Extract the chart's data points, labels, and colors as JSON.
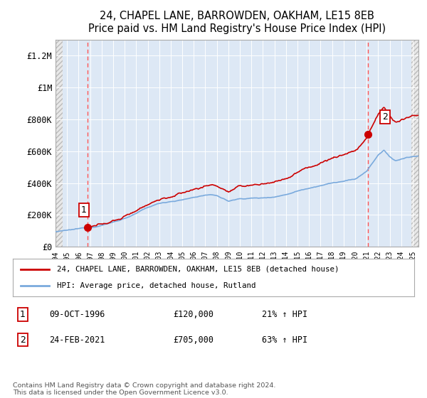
{
  "title": "24, CHAPEL LANE, BARROWDEN, OAKHAM, LE15 8EB",
  "subtitle": "Price paid vs. HM Land Registry's House Price Index (HPI)",
  "ylim": [
    0,
    1300000
  ],
  "yticks": [
    0,
    200000,
    400000,
    600000,
    800000,
    1000000,
    1200000
  ],
  "ytick_labels": [
    "£0",
    "£200K",
    "£400K",
    "£600K",
    "£800K",
    "£1M",
    "£1.2M"
  ],
  "xlim_start": 1994.0,
  "xlim_end": 2025.5,
  "purchase1_date": 1996.77,
  "purchase1_price": 120000,
  "purchase1_label": "1",
  "purchase2_date": 2021.12,
  "purchase2_price": 705000,
  "purchase2_label": "2",
  "hpi_line_color": "#7aaadd",
  "price_line_color": "#cc0000",
  "dashed_vline_color": "#ff5555",
  "bg_plot_color": "#dde8f5",
  "hatch_color": "#c0c0c0",
  "grid_color": "#ffffff",
  "legend1_text": "24, CHAPEL LANE, BARROWDEN, OAKHAM, LE15 8EB (detached house)",
  "legend2_text": "HPI: Average price, detached house, Rutland",
  "footer": "Contains HM Land Registry data © Crown copyright and database right 2024.\nThis data is licensed under the Open Government Licence v3.0.",
  "xtick_years": [
    1994,
    1995,
    1996,
    1997,
    1998,
    1999,
    2000,
    2001,
    2002,
    2003,
    2004,
    2005,
    2006,
    2007,
    2008,
    2009,
    2010,
    2011,
    2012,
    2013,
    2014,
    2015,
    2016,
    2017,
    2018,
    2019,
    2020,
    2021,
    2022,
    2023,
    2024,
    2025
  ]
}
